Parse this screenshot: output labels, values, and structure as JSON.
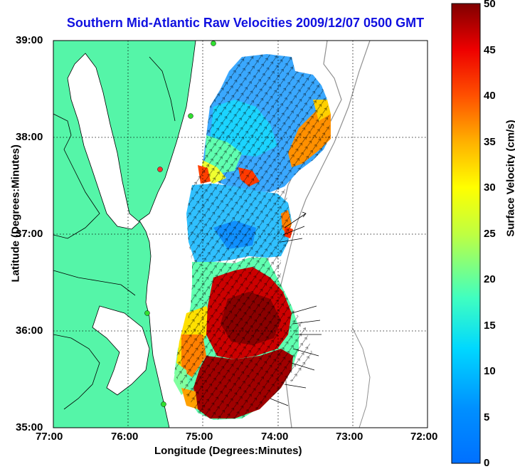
{
  "title": "Southern Mid-Atlantic Raw Velocities 2009/12/07 0500 GMT",
  "xlabel": "Longitude (Degrees:Minutes)",
  "ylabel": "Latitude (Degrees:Minutes)",
  "x_ticks": [
    "77:00",
    "76:00",
    "75:00",
    "74:00",
    "73:00",
    "72:00"
  ],
  "y_ticks": [
    "39:00",
    "38:00",
    "37:00",
    "36:00",
    "35:00"
  ],
  "colorbar": {
    "label": "Surface Velocity (cm/s)",
    "ticks": [
      "0",
      "5",
      "10",
      "15",
      "20",
      "25",
      "30",
      "35",
      "40",
      "45",
      "50"
    ],
    "min": 0,
    "max": 50
  },
  "colors": {
    "land": "#55f5a8",
    "title": "#1010e0"
  }
}
